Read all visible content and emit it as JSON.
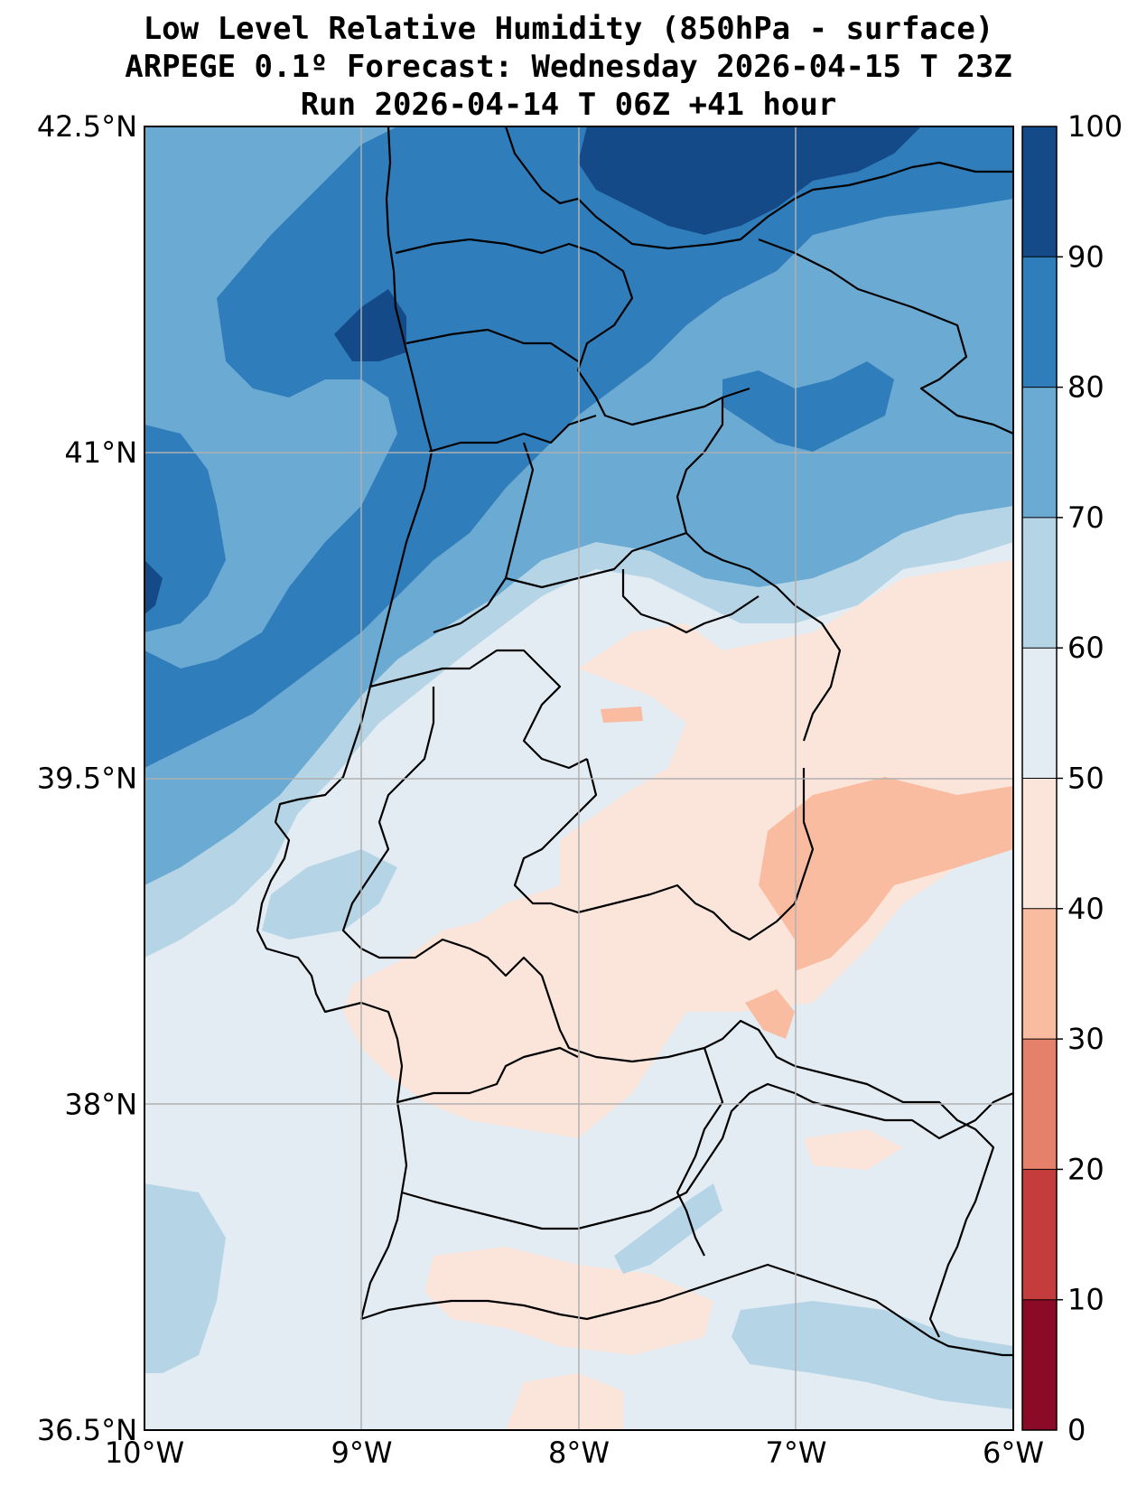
{
  "title": {
    "line1": "Low Level Relative Humidity (850hPa - surface)",
    "line2": "ARPEGE 0.1º Forecast: Wednesday 2026-04-15 T 23Z",
    "line3": "Run 2026-04-14 T 06Z +41 hour"
  },
  "map": {
    "lon_range": [
      -10,
      -6
    ],
    "lat_range": [
      36.5,
      42.5
    ],
    "lat_ticks": [
      {
        "value": 42.5,
        "label": "42.5°N"
      },
      {
        "value": 41,
        "label": "41°N"
      },
      {
        "value": 39.5,
        "label": "39.5°N"
      },
      {
        "value": 38,
        "label": "38°N"
      },
      {
        "value": 36.5,
        "label": "36.5°N"
      }
    ],
    "lon_ticks": [
      {
        "value": -10,
        "label": "10°W"
      },
      {
        "value": -9,
        "label": "9°W"
      },
      {
        "value": -8,
        "label": "8°W"
      },
      {
        "value": -7,
        "label": "7°W"
      },
      {
        "value": -6,
        "label": "6°W"
      }
    ]
  },
  "colorbar": {
    "levels": [
      0,
      10,
      20,
      30,
      40,
      50,
      60,
      70,
      80,
      90,
      100
    ],
    "labels": [
      "0",
      "10",
      "20",
      "30",
      "40",
      "50",
      "60",
      "70",
      "80",
      "90",
      "100"
    ],
    "colors": [
      "#8b0a26",
      "#c43c3c",
      "#e5816a",
      "#f9bca0",
      "#fbe5da",
      "#e4ecf3",
      "#b5d5e7",
      "#6aaad3",
      "#307dbc",
      "#134a87"
    ]
  }
}
